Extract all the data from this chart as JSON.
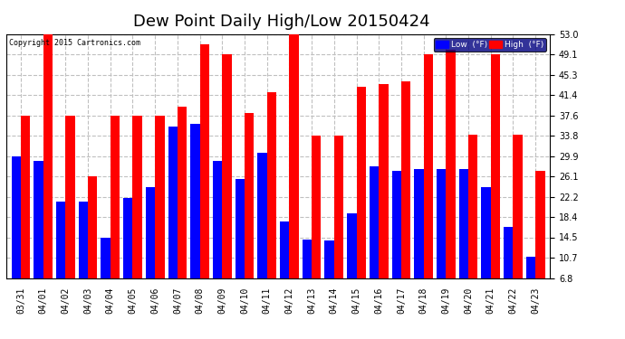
{
  "title": "Dew Point Daily High/Low 20150424",
  "copyright": "Copyright 2015 Cartronics.com",
  "legend_low": "Low  (°F)",
  "legend_high": "High  (°F)",
  "categories": [
    "03/31",
    "04/01",
    "04/02",
    "04/03",
    "04/04",
    "04/05",
    "04/06",
    "04/07",
    "04/08",
    "04/09",
    "04/10",
    "04/11",
    "04/12",
    "04/13",
    "04/14",
    "04/15",
    "04/16",
    "04/17",
    "04/18",
    "04/19",
    "04/20",
    "04/21",
    "04/22",
    "04/23"
  ],
  "high_values": [
    37.6,
    53.0,
    37.6,
    26.1,
    37.6,
    37.6,
    37.6,
    39.2,
    51.0,
    49.1,
    38.0,
    42.0,
    53.0,
    33.8,
    33.8,
    43.0,
    43.5,
    44.0,
    49.1,
    50.0,
    34.0,
    49.1,
    34.0,
    27.0
  ],
  "low_values": [
    29.9,
    28.9,
    21.2,
    21.2,
    14.5,
    22.0,
    24.0,
    35.5,
    36.0,
    29.0,
    25.5,
    30.5,
    17.5,
    14.0,
    13.9,
    19.0,
    28.0,
    27.0,
    27.5,
    27.5,
    27.5,
    24.0,
    16.5,
    10.8
  ],
  "ylim_min": 6.8,
  "ylim_max": 53.0,
  "yticks": [
    6.8,
    10.7,
    14.5,
    18.4,
    22.2,
    26.1,
    29.9,
    33.8,
    37.6,
    41.4,
    45.3,
    49.1,
    53.0
  ],
  "high_color": "#ff0000",
  "low_color": "#0000ff",
  "bg_color": "#ffffff",
  "plot_bg_color": "#ffffff",
  "grid_color": "#c0c0c0",
  "title_fontsize": 13,
  "tick_fontsize": 7,
  "bar_width": 0.42
}
